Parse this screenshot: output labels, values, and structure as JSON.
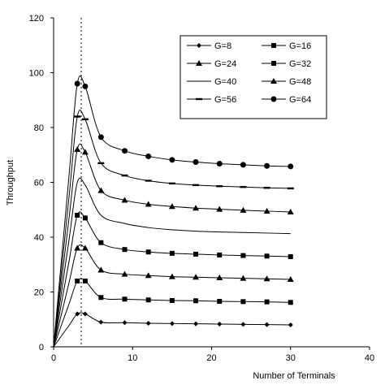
{
  "chart_data": {
    "type": "line",
    "title": "",
    "xlabel": "Number of Terminals",
    "ylabel": "Throughput",
    "xlim": [
      0,
      40
    ],
    "ylim": [
      0,
      120
    ],
    "xticks": [
      0,
      10,
      20,
      30,
      40
    ],
    "yticks": [
      0,
      20,
      40,
      60,
      80,
      100,
      120
    ],
    "grid": false,
    "legend_position": "top-right",
    "reference_line": {
      "x": 3.5,
      "style": "dotted"
    },
    "series": [
      {
        "name": "G=8",
        "marker": "diamond",
        "x": [
          0,
          1,
          2,
          3,
          4,
          6,
          9,
          12,
          15,
          18,
          21,
          24,
          27,
          30
        ],
        "y": [
          0,
          4,
          8,
          12,
          12,
          9,
          8.8,
          8.6,
          8.5,
          8.4,
          8.3,
          8.2,
          8.1,
          8
        ]
      },
      {
        "name": "G=16",
        "marker": "square",
        "x": [
          0,
          1,
          2,
          3,
          4,
          6,
          9,
          12,
          15,
          18,
          21,
          24,
          27,
          30
        ],
        "y": [
          0,
          8,
          16,
          24,
          24,
          18,
          17.4,
          17.1,
          16.9,
          16.8,
          16.6,
          16.5,
          16.4,
          16.2
        ]
      },
      {
        "name": "G=24",
        "marker": "triangle",
        "x": [
          0,
          1,
          2,
          3,
          4,
          6,
          9,
          12,
          15,
          18,
          21,
          24,
          27,
          30
        ],
        "y": [
          0,
          12,
          24,
          36,
          36,
          28,
          26.5,
          26,
          25.6,
          25.4,
          25.2,
          25,
          24.8,
          24.6
        ]
      },
      {
        "name": "G=32",
        "marker": "square",
        "x": [
          0,
          1,
          2,
          3,
          4,
          6,
          9,
          12,
          15,
          18,
          21,
          24,
          27,
          30
        ],
        "y": [
          0,
          16,
          32,
          48,
          47,
          38,
          35.5,
          34.6,
          34.1,
          33.8,
          33.5,
          33.3,
          33.1,
          32.9
        ]
      },
      {
        "name": "G=40",
        "marker": "none",
        "x": [
          0,
          1,
          2,
          3,
          4,
          6,
          9,
          12,
          15,
          18,
          21,
          24,
          27,
          30
        ],
        "y": [
          0,
          20,
          40,
          60,
          59,
          48,
          45,
          43.5,
          42.7,
          42.2,
          41.9,
          41.7,
          41.5,
          41.3
        ]
      },
      {
        "name": "G=48",
        "marker": "triangle",
        "x": [
          0,
          1,
          2,
          3,
          4,
          6,
          9,
          12,
          15,
          18,
          21,
          24,
          27,
          30
        ],
        "y": [
          0,
          24,
          48,
          72,
          71,
          57,
          53.5,
          52,
          51.2,
          50.6,
          50.2,
          49.8,
          49.5,
          49.2
        ]
      },
      {
        "name": "G=56",
        "marker": "dash",
        "x": [
          0,
          1,
          2,
          3,
          4,
          6,
          9,
          12,
          15,
          18,
          21,
          24,
          27,
          30
        ],
        "y": [
          0,
          28,
          56,
          84,
          83,
          67,
          62.5,
          60.6,
          59.6,
          59,
          58.6,
          58.3,
          58,
          57.8
        ]
      },
      {
        "name": "G=64",
        "marker": "circle",
        "x": [
          0,
          1,
          2,
          3,
          4,
          6,
          9,
          12,
          15,
          18,
          21,
          24,
          27,
          30
        ],
        "y": [
          0,
          32,
          64,
          96,
          95,
          76.5,
          71.5,
          69.5,
          68.2,
          67.4,
          66.8,
          66.4,
          66,
          65.8
        ]
      }
    ]
  }
}
